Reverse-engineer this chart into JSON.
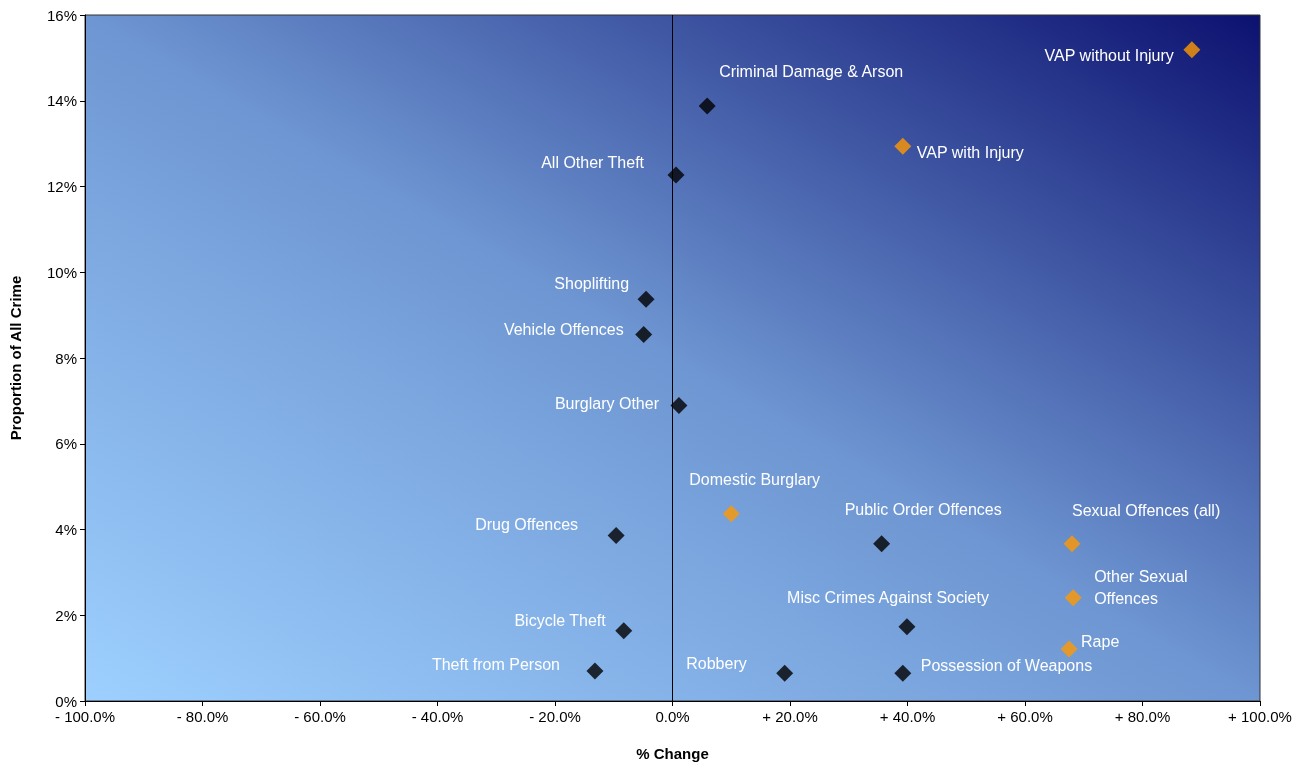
{
  "chart_data": {
    "type": "scatter",
    "xlabel": "% Change",
    "ylabel": "Proportion of All Crime",
    "xlim": [
      -100,
      100
    ],
    "ylim": [
      0,
      16
    ],
    "xticks": [
      {
        "value": -100,
        "label": "- 100.0%"
      },
      {
        "value": -80,
        "label": "- 80.0%"
      },
      {
        "value": -60,
        "label": "- 60.0%"
      },
      {
        "value": -40,
        "label": "- 40.0%"
      },
      {
        "value": -20,
        "label": "- 20.0%"
      },
      {
        "value": 0,
        "label": "0.0%"
      },
      {
        "value": 20,
        "label": "+ 20.0%"
      },
      {
        "value": 40,
        "label": "+ 40.0%"
      },
      {
        "value": 60,
        "label": "+ 60.0%"
      },
      {
        "value": 80,
        "label": "+ 80.0%"
      },
      {
        "value": 100,
        "label": "+ 100.0%"
      }
    ],
    "yticks": [
      {
        "value": 0,
        "label": "0%"
      },
      {
        "value": 2,
        "label": "2%"
      },
      {
        "value": 4,
        "label": "4%"
      },
      {
        "value": 6,
        "label": "6%"
      },
      {
        "value": 8,
        "label": "8%"
      },
      {
        "value": 10,
        "label": "10%"
      },
      {
        "value": 12,
        "label": "12%"
      },
      {
        "value": 14,
        "label": "14%"
      },
      {
        "value": 16,
        "label": "16%"
      }
    ],
    "grid": false,
    "marker": "diamond",
    "ref_lines": [
      {
        "axis": "x",
        "value": 0,
        "color": "#000000"
      }
    ],
    "series": [
      {
        "color": "#000000",
        "x": [
          5.9,
          0.6,
          -4.5,
          -4.9,
          1.1,
          -9.6,
          35.6,
          39.9,
          -8.3,
          -13.2,
          19.1,
          39.2
        ],
        "values": [
          13.88,
          12.27,
          9.37,
          8.55,
          6.89,
          3.86,
          3.67,
          1.73,
          1.64,
          0.7,
          0.65,
          0.65
        ]
      },
      {
        "color": "#ff9900",
        "x": [
          88.4,
          39.2,
          10.0,
          68.0,
          68.2,
          67.5
        ],
        "values": [
          15.19,
          12.94,
          4.37,
          3.67,
          2.41,
          1.21
        ]
      }
    ],
    "annotations": [
      {
        "text": "VAP without Injury",
        "x": 88.4,
        "y": 15.19
      },
      {
        "text": "Criminal Damage & Arson",
        "x": 5.9,
        "y": 13.88
      },
      {
        "text": "VAP with Injury",
        "x": 39.2,
        "y": 12.94
      },
      {
        "text": "All Other Theft",
        "x": 0.6,
        "y": 12.27
      },
      {
        "text": "Shoplifting",
        "x": -4.5,
        "y": 9.37
      },
      {
        "text": "Vehicle Offences",
        "x": -4.9,
        "y": 8.55
      },
      {
        "text": "Burglary Other",
        "x": 1.1,
        "y": 6.89
      },
      {
        "text": "Domestic Burglary",
        "x": 10.0,
        "y": 4.37
      },
      {
        "text": "Drug Offences",
        "x": -9.6,
        "y": 3.86
      },
      {
        "text": "Public Order Offences",
        "x": 35.6,
        "y": 3.67
      },
      {
        "text": "Sexual Offences (all)",
        "x": 68.0,
        "y": 3.67
      },
      {
        "text": "Other Sexual Offences",
        "x": 68.2,
        "y": 2.41
      },
      {
        "text": "Misc Crimes Against Society",
        "x": 39.9,
        "y": 1.73
      },
      {
        "text": "Bicycle Theft",
        "x": -8.3,
        "y": 1.64
      },
      {
        "text": "Rape",
        "x": 67.5,
        "y": 1.21
      },
      {
        "text": "Theft from Person",
        "x": -13.2,
        "y": 0.7
      },
      {
        "text": "Robbery",
        "x": 19.1,
        "y": 0.65
      },
      {
        "text": "Possession of Weapons",
        "x": 39.2,
        "y": 0.65
      }
    ]
  }
}
